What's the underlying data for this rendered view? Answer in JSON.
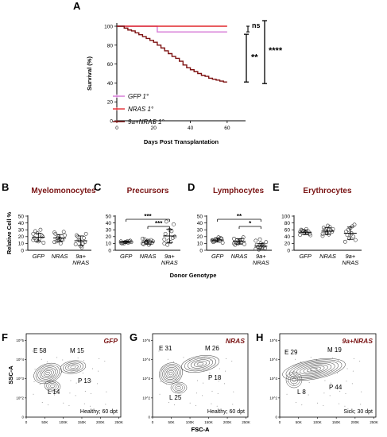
{
  "chart_data": [
    {
      "panel": "A",
      "type": "line",
      "subtype": "kaplan-meier survival",
      "xlabel": "Days Post Transplantation",
      "ylabel": "Survival (%)",
      "xlim": [
        0,
        70
      ],
      "ylim": [
        0,
        100
      ],
      "xticks": [
        0,
        20,
        40,
        60
      ],
      "yticks": [
        0,
        20,
        40,
        60,
        80,
        100
      ],
      "series": [
        {
          "name": "GFP 1°",
          "color": "#d67ad6",
          "x": [
            0,
            22,
            22,
            60
          ],
          "y": [
            100,
            100,
            94,
            94
          ]
        },
        {
          "name": "NRAS 1°",
          "color": "#e0262b",
          "x": [
            0,
            60
          ],
          "y": [
            100,
            100
          ]
        },
        {
          "name": "9a+NRAS 1°",
          "color": "#7d1010",
          "x": [
            0,
            4,
            6,
            8,
            10,
            12,
            14,
            16,
            18,
            20,
            22,
            24,
            26,
            28,
            30,
            32,
            34,
            36,
            38,
            40,
            42,
            44,
            46,
            48,
            50,
            52,
            54,
            56,
            58,
            60
          ],
          "y": [
            100,
            98,
            96,
            95,
            93,
            91,
            89,
            87,
            85,
            83,
            80,
            77,
            74,
            71,
            68,
            66,
            63,
            59,
            56,
            54,
            52,
            50,
            48,
            47,
            45,
            44,
            43,
            42,
            41,
            41
          ]
        }
      ],
      "annotations": [
        {
          "label": "ns",
          "between": [
            "GFP 1°",
            "NRAS 1°"
          ]
        },
        {
          "label": "**",
          "between": [
            "GFP 1°",
            "9a+NRAS 1°"
          ]
        },
        {
          "label": "****",
          "between": [
            "NRAS 1°",
            "9a+NRAS 1°"
          ]
        }
      ]
    },
    {
      "panel": "B",
      "type": "scatter",
      "title": "Myelomonocytes",
      "ylabel": "Relative Cell %",
      "ylim": [
        0,
        50
      ],
      "yticks": [
        0,
        10,
        20,
        30,
        40,
        50
      ],
      "categories": [
        "GFP",
        "NRAS",
        "9a+ NRAS"
      ],
      "points": [
        [
          15,
          25,
          22,
          18,
          13,
          20,
          28,
          17,
          11,
          14,
          30,
          24
        ],
        [
          12,
          20,
          15,
          24,
          17,
          27,
          13,
          10,
          22,
          18,
          16,
          26,
          14
        ],
        [
          9,
          14,
          18,
          22,
          6,
          12,
          20,
          4,
          24,
          15,
          10
        ]
      ],
      "mean": [
        19,
        18,
        14
      ],
      "err": [
        6,
        5,
        7
      ]
    },
    {
      "panel": "C",
      "type": "scatter",
      "title": "Precursors",
      "ylim": [
        0,
        50
      ],
      "yticks": [
        0,
        10,
        20,
        30,
        40,
        50
      ],
      "categories": [
        "GFP",
        "NRAS",
        "9a+ NRAS"
      ],
      "points": [
        [
          11,
          12,
          13,
          10,
          12,
          14,
          11,
          13,
          12,
          10,
          11,
          13
        ],
        [
          10,
          12,
          15,
          9,
          14,
          11,
          16,
          8,
          13,
          12,
          10,
          17,
          11
        ],
        [
          10,
          14,
          18,
          24,
          30,
          38,
          42,
          12,
          20,
          8,
          28,
          16
        ]
      ],
      "mean": [
        12,
        12,
        21
      ],
      "err": [
        1.5,
        3,
        10
      ],
      "comparisons": [
        {
          "pair": [
            "GFP",
            "9a+ NRAS"
          ],
          "label": "***"
        },
        {
          "pair": [
            "NRAS",
            "9a+ NRAS"
          ],
          "label": "***"
        }
      ]
    },
    {
      "panel": "D",
      "type": "scatter",
      "title": "Lymphocytes",
      "ylim": [
        0,
        50
      ],
      "yticks": [
        0,
        10,
        20,
        30,
        40,
        50
      ],
      "categories": [
        "GFP",
        "NRAS",
        "9a+ NRAS"
      ],
      "points": [
        [
          14,
          16,
          18,
          12,
          15,
          17,
          13,
          19,
          11,
          16,
          14,
          15
        ],
        [
          10,
          13,
          16,
          8,
          12,
          19,
          11,
          14,
          9,
          15,
          12,
          17,
          10
        ],
        [
          2,
          4,
          6,
          8,
          10,
          3,
          5,
          7,
          12,
          1,
          9,
          14,
          16
        ]
      ],
      "mean": [
        15,
        13,
        6
      ],
      "err": [
        3,
        4,
        4
      ],
      "comparisons": [
        {
          "pair": [
            "GFP",
            "9a+ NRAS"
          ],
          "label": "**"
        },
        {
          "pair": [
            "NRAS",
            "9a+ NRAS"
          ],
          "label": "*"
        }
      ]
    },
    {
      "panel": "E",
      "type": "scatter",
      "title": "Erythrocytes",
      "ylim": [
        0,
        100
      ],
      "yticks": [
        0,
        20,
        40,
        60,
        80,
        100
      ],
      "categories": [
        "GFP",
        "NRAS",
        "9a+ NRAS"
      ],
      "points": [
        [
          45,
          50,
          55,
          60,
          52,
          48,
          58,
          62,
          44,
          56,
          50,
          54
        ],
        [
          42,
          50,
          58,
          66,
          72,
          54,
          60,
          46,
          62,
          56,
          68,
          48,
          52
        ],
        [
          25,
          35,
          40,
          55,
          65,
          75,
          45,
          50,
          30,
          60,
          70
        ]
      ],
      "mean": [
        53,
        56,
        50
      ],
      "err": [
        7,
        10,
        18
      ]
    },
    {
      "shared_xlabel": "Donor Genotype"
    },
    {
      "panel": "F",
      "type": "contour",
      "tag": "GFP",
      "xlabel": "FSC-A",
      "ylabel": "SSC-A",
      "xticks": [
        "0",
        "50K",
        "100K",
        "150K",
        "200K",
        "250K"
      ],
      "yticks": [
        "0",
        "10^2",
        "10^3",
        "10^4",
        "10^5"
      ],
      "gates": [
        {
          "name": "E",
          "value": 58
        },
        {
          "name": "M",
          "value": 15
        },
        {
          "name": "P",
          "value": 13
        },
        {
          "name": "L",
          "value": 14
        }
      ],
      "status": "Healthy; 60 dpt"
    },
    {
      "panel": "G",
      "type": "contour",
      "tag": "NRAS",
      "xlabel": "FSC-A",
      "xticks": [
        "0",
        "50K",
        "100K",
        "150K",
        "200K",
        "250K"
      ],
      "yticks": [
        "0",
        "10^2",
        "10^3",
        "10^4",
        "10^5"
      ],
      "gates": [
        {
          "name": "E",
          "value": 31
        },
        {
          "name": "M",
          "value": 26
        },
        {
          "name": "P",
          "value": 18
        },
        {
          "name": "L",
          "value": 25
        }
      ],
      "status": "Healthy; 60 dpt"
    },
    {
      "panel": "H",
      "type": "contour",
      "tag": "9a+NRAS",
      "xticks": [
        "0",
        "50K",
        "100K",
        "150K",
        "200K",
        "250K"
      ],
      "yticks": [
        "0",
        "10^2",
        "10^3",
        "10^4",
        "10^5"
      ],
      "gates": [
        {
          "name": "E",
          "value": 29
        },
        {
          "name": "M",
          "value": 19
        },
        {
          "name": "P",
          "value": 44
        },
        {
          "name": "L",
          "value": 8
        }
      ],
      "status": "Sick; 30 dpt"
    }
  ]
}
